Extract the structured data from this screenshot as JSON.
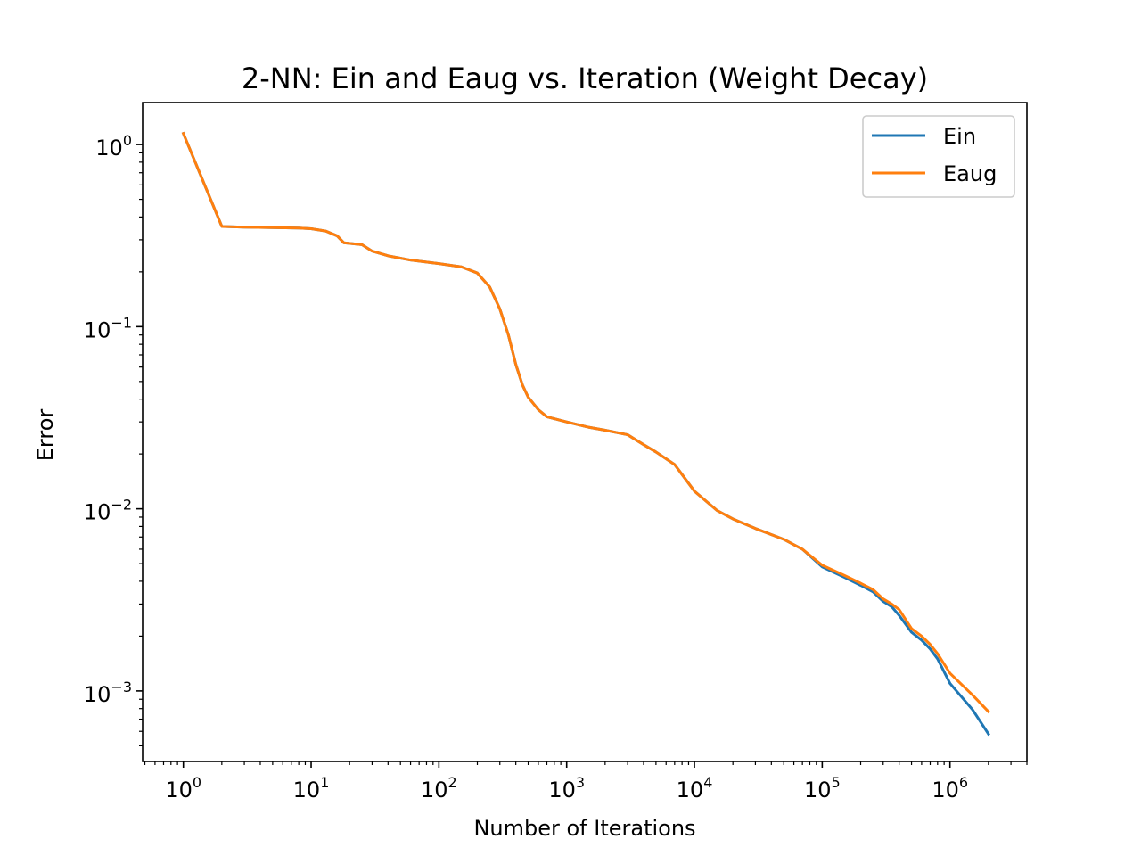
{
  "chart_data": {
    "type": "line",
    "title": "2-NN: Ein and Eaug vs. Iteration (Weight Decay)",
    "xlabel": "Number of Iterations",
    "ylabel": "Error",
    "xscale": "log",
    "yscale": "log",
    "xlim": [
      0.48,
      4000000
    ],
    "ylim": [
      0.00041,
      1.7
    ],
    "x_ticks": [
      {
        "value": 1,
        "base": "10",
        "exp": "0"
      },
      {
        "value": 10,
        "base": "10",
        "exp": "1"
      },
      {
        "value": 100,
        "base": "10",
        "exp": "2"
      },
      {
        "value": 1000,
        "base": "10",
        "exp": "3"
      },
      {
        "value": 10000,
        "base": "10",
        "exp": "4"
      },
      {
        "value": 100000,
        "base": "10",
        "exp": "5"
      },
      {
        "value": 1000000,
        "base": "10",
        "exp": "6"
      }
    ],
    "y_ticks": [
      {
        "value": 1,
        "base": "10",
        "exp": "0"
      },
      {
        "value": 0.1,
        "base": "10",
        "exp": "−1"
      },
      {
        "value": 0.01,
        "base": "10",
        "exp": "−2"
      },
      {
        "value": 0.001,
        "base": "10",
        "exp": "−3"
      }
    ],
    "grid": false,
    "legend_position": "top-right",
    "series": [
      {
        "name": "Ein",
        "color": "#1f77b4",
        "x": [
          1,
          2,
          3,
          5,
          8,
          10,
          13,
          16,
          18,
          25,
          30,
          40,
          60,
          100,
          150,
          200,
          250,
          300,
          350,
          400,
          450,
          500,
          600,
          700,
          1000,
          1500,
          2000,
          3000,
          4000,
          5000,
          7000,
          10000,
          15000,
          20000,
          30000,
          50000,
          70000,
          100000,
          150000,
          200000,
          250000,
          300000,
          350000,
          400000,
          500000,
          600000,
          700000,
          800000,
          1000000,
          1500000,
          2000000
        ],
        "y": [
          1.15,
          0.355,
          0.352,
          0.35,
          0.348,
          0.345,
          0.335,
          0.315,
          0.289,
          0.282,
          0.26,
          0.245,
          0.232,
          0.222,
          0.213,
          0.197,
          0.165,
          0.125,
          0.09,
          0.062,
          0.048,
          0.041,
          0.035,
          0.032,
          0.03,
          0.028,
          0.027,
          0.0255,
          0.0225,
          0.0205,
          0.0175,
          0.0125,
          0.0098,
          0.0088,
          0.0078,
          0.0068,
          0.006,
          0.0048,
          0.0042,
          0.0038,
          0.0035,
          0.0031,
          0.0029,
          0.0026,
          0.0021,
          0.0019,
          0.0017,
          0.0015,
          0.0011,
          0.00079,
          0.00058
        ]
      },
      {
        "name": "Eaug",
        "color": "#ff7f0e",
        "x": [
          1,
          2,
          3,
          5,
          8,
          10,
          13,
          16,
          18,
          25,
          30,
          40,
          60,
          100,
          150,
          200,
          250,
          300,
          350,
          400,
          450,
          500,
          600,
          700,
          1000,
          1500,
          2000,
          3000,
          4000,
          5000,
          7000,
          10000,
          15000,
          20000,
          30000,
          50000,
          70000,
          100000,
          150000,
          200000,
          250000,
          300000,
          350000,
          400000,
          500000,
          600000,
          700000,
          800000,
          1000000,
          1500000,
          2000000
        ],
        "y": [
          1.15,
          0.355,
          0.352,
          0.35,
          0.348,
          0.345,
          0.335,
          0.315,
          0.289,
          0.282,
          0.26,
          0.245,
          0.232,
          0.222,
          0.213,
          0.197,
          0.165,
          0.125,
          0.09,
          0.062,
          0.048,
          0.041,
          0.035,
          0.032,
          0.03,
          0.028,
          0.027,
          0.0255,
          0.0225,
          0.0205,
          0.0175,
          0.0125,
          0.0098,
          0.0088,
          0.0078,
          0.0068,
          0.006,
          0.0049,
          0.0043,
          0.0039,
          0.0036,
          0.0032,
          0.003,
          0.0028,
          0.0022,
          0.002,
          0.0018,
          0.0016,
          0.00125,
          0.00095,
          0.00077
        ]
      }
    ]
  }
}
